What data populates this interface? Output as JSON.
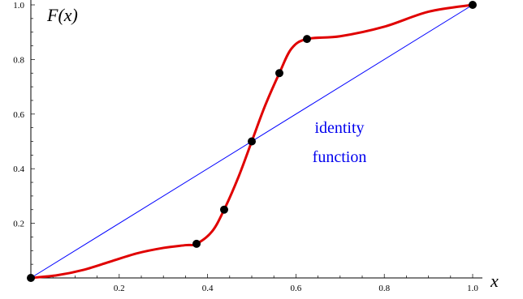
{
  "chart_data": {
    "type": "line",
    "xlabel": "x",
    "ylabel": "F(x)",
    "xlim": [
      0,
      1
    ],
    "ylim": [
      0,
      1
    ],
    "x_ticks": [
      0.2,
      0.4,
      0.6,
      0.8,
      1.0
    ],
    "x_tick_labels": [
      "0.2",
      "0.4",
      "0.6",
      "0.8",
      "1.0"
    ],
    "y_ticks": [
      0.2,
      0.4,
      0.6,
      0.8,
      1.0
    ],
    "y_tick_labels": [
      "0.2",
      "0.4",
      "0.6",
      "0.8",
      "1.0"
    ],
    "grid": false,
    "annotations": [
      "identity",
      "function"
    ],
    "series": [
      {
        "color": "#0000ff",
        "x": [
          0,
          1
        ],
        "y": [
          0,
          1
        ]
      },
      {
        "color": "#e00000",
        "x": [
          0,
          0.06,
          0.12,
          0.18,
          0.24,
          0.3,
          0.35,
          0.375,
          0.41,
          0.4375,
          0.47,
          0.5,
          0.53,
          0.5625,
          0.59,
          0.625,
          0.7,
          0.8,
          0.9,
          1.0
        ],
        "y": [
          0,
          0.01,
          0.03,
          0.06,
          0.09,
          0.11,
          0.12,
          0.125,
          0.17,
          0.25,
          0.37,
          0.5,
          0.63,
          0.75,
          0.84,
          0.875,
          0.885,
          0.92,
          0.975,
          1.0
        ]
      }
    ],
    "marked_points": [
      {
        "x": 0,
        "y": 0
      },
      {
        "x": 0.375,
        "y": 0.125
      },
      {
        "x": 0.4375,
        "y": 0.25
      },
      {
        "x": 0.5,
        "y": 0.5
      },
      {
        "x": 0.5625,
        "y": 0.75
      },
      {
        "x": 0.625,
        "y": 0.875
      },
      {
        "x": 1.0,
        "y": 1.0
      }
    ],
    "marker_color": "#000000"
  }
}
